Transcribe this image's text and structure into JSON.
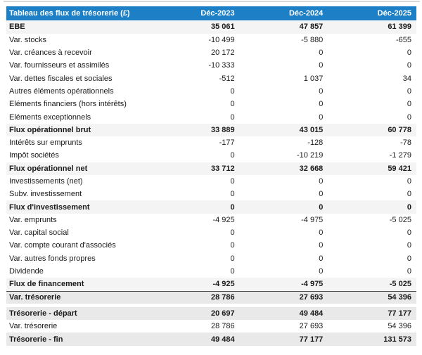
{
  "colors": {
    "header_bg": "#1d80c6",
    "subtotal_bg": "#f4f4f4",
    "total_bg": "#e9e9e9",
    "text": "#1a1a1a",
    "header_text": "#ffffff",
    "topline": "#d9d9d9",
    "total_border": "#4a4a4a"
  },
  "table": {
    "header": {
      "label": "Tableau des flux de trésorerie (£)",
      "columns": [
        "Déc-2023",
        "Déc-2024",
        "Déc-2025"
      ]
    },
    "rows": [
      {
        "label": "EBE",
        "values": [
          "35 061",
          "47 857",
          "61 399"
        ],
        "style": "subtotal"
      },
      {
        "label": "Var. stocks",
        "values": [
          "-10 499",
          "-5 880",
          "-655"
        ],
        "style": "normal"
      },
      {
        "label": "Var. créances à recevoir",
        "values": [
          "20 172",
          "0",
          "0"
        ],
        "style": "normal"
      },
      {
        "label": "Var. fournisseurs et assimilés",
        "values": [
          "-10 333",
          "0",
          "0"
        ],
        "style": "normal"
      },
      {
        "label": "Var. dettes fiscales et sociales",
        "values": [
          "-512",
          "1 037",
          "34"
        ],
        "style": "normal"
      },
      {
        "label": "Autres éléments opérationnels",
        "values": [
          "0",
          "0",
          "0"
        ],
        "style": "normal"
      },
      {
        "label": "Eléments financiers (hors intérêts)",
        "values": [
          "0",
          "0",
          "0"
        ],
        "style": "normal"
      },
      {
        "label": "Eléments exceptionnels",
        "values": [
          "0",
          "0",
          "0"
        ],
        "style": "normal"
      },
      {
        "label": "Flux opérationnel brut",
        "values": [
          "33 889",
          "43 015",
          "60 778"
        ],
        "style": "subtotal"
      },
      {
        "label": "Intérêts sur emprunts",
        "values": [
          "-177",
          "-128",
          "-78"
        ],
        "style": "normal"
      },
      {
        "label": "Impôt sociétés",
        "values": [
          "0",
          "-10 219",
          "-1 279"
        ],
        "style": "normal"
      },
      {
        "label": "Flux opérationnel net",
        "values": [
          "33 712",
          "32 668",
          "59 421"
        ],
        "style": "subtotal"
      },
      {
        "label": "Investissements (net)",
        "values": [
          "0",
          "0",
          "0"
        ],
        "style": "normal"
      },
      {
        "label": "Subv. investissement",
        "values": [
          "0",
          "0",
          "0"
        ],
        "style": "normal"
      },
      {
        "label": "Flux d'investissement",
        "values": [
          "0",
          "0",
          "0"
        ],
        "style": "subtotal"
      },
      {
        "label": "Var. emprunts",
        "values": [
          "-4 925",
          "-4 975",
          "-5 025"
        ],
        "style": "normal"
      },
      {
        "label": "Var. capital social",
        "values": [
          "0",
          "0",
          "0"
        ],
        "style": "normal"
      },
      {
        "label": "Var. compte courant d'associés",
        "values": [
          "0",
          "0",
          "0"
        ],
        "style": "normal"
      },
      {
        "label": "Var. autres fonds propres",
        "values": [
          "0",
          "0",
          "0"
        ],
        "style": "normal"
      },
      {
        "label": "Dividende",
        "values": [
          "0",
          "0",
          "0"
        ],
        "style": "normal"
      },
      {
        "label": "Flux de financement",
        "values": [
          "-4 925",
          "-4 975",
          "-5 025"
        ],
        "style": "subtotal"
      },
      {
        "label": "Var. trésorerie",
        "values": [
          "28 786",
          "27 693",
          "54 396"
        ],
        "style": "total",
        "border_top": true
      },
      {
        "gap": true
      },
      {
        "label": "Trésorerie - départ",
        "values": [
          "20 697",
          "49 484",
          "77 177"
        ],
        "style": "total"
      },
      {
        "label": "Var. trésorerie",
        "values": [
          "28 786",
          "27 693",
          "54 396"
        ],
        "style": "normal"
      },
      {
        "label": "Trésorerie - fin",
        "values": [
          "49 484",
          "77 177",
          "131 573"
        ],
        "style": "total"
      }
    ]
  }
}
